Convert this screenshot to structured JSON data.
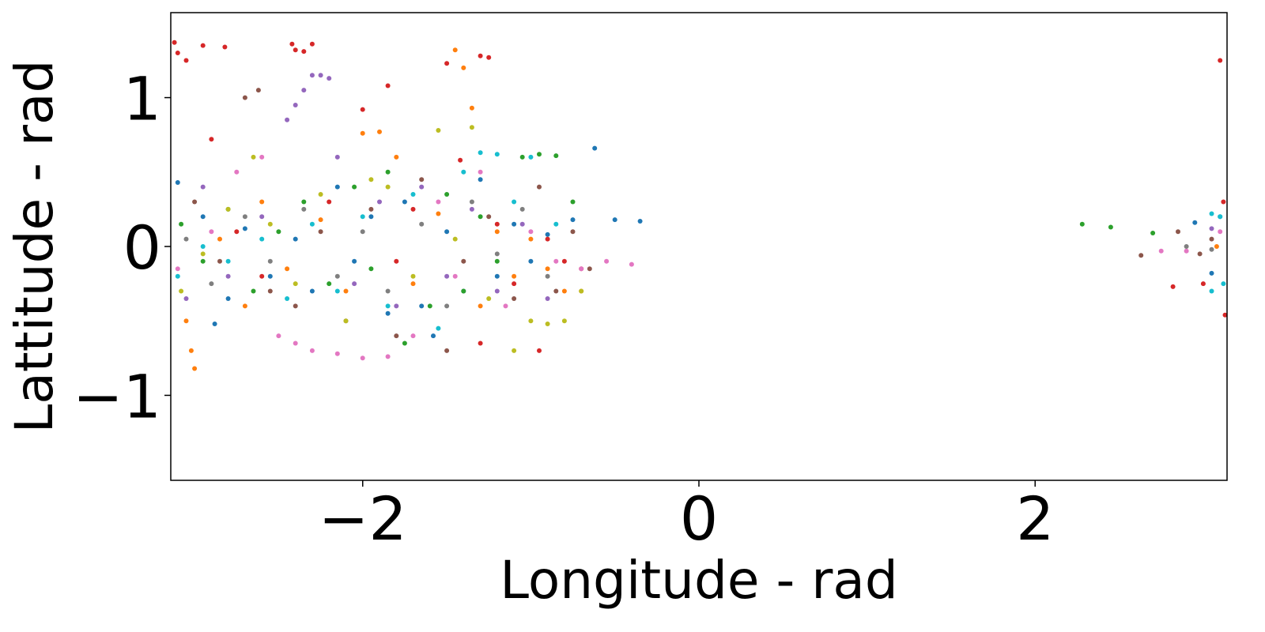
{
  "chart_data": {
    "type": "scatter",
    "title": "",
    "xlabel": "Longitude - rad",
    "ylabel": "Lattitude - rad",
    "xlim": [
      -3.1416,
      3.1416
    ],
    "ylim": [
      -1.5708,
      1.5708
    ],
    "xticks": [
      -2,
      0,
      2
    ],
    "xtick_labels": [
      "−2",
      "0",
      "2"
    ],
    "yticks": [
      -1,
      0,
      1
    ],
    "ytick_labels": [
      "−1",
      "0",
      "1"
    ],
    "grid": false,
    "legend": "none",
    "colors": [
      "#1f77b4",
      "#ff7f0e",
      "#2ca02c",
      "#d62728",
      "#9467bd",
      "#8c564b",
      "#e377c2",
      "#7f7f7f",
      "#bcbd22",
      "#17becf"
    ],
    "series": [
      {
        "color": "#1f77b4",
        "points": [
          [
            -3.1,
            0.43
          ],
          [
            -2.95,
            0.2
          ],
          [
            -2.88,
            -0.52
          ],
          [
            -2.8,
            -0.35
          ],
          [
            -2.7,
            0.12
          ],
          [
            -2.55,
            -0.2
          ],
          [
            -2.4,
            0.05
          ],
          [
            -2.3,
            -0.3
          ],
          [
            -2.15,
            0.4
          ],
          [
            -2.05,
            -0.1
          ],
          [
            -1.95,
            0.2
          ],
          [
            -1.85,
            -0.45
          ],
          [
            -1.75,
            0.3
          ],
          [
            -1.65,
            -0.4
          ],
          [
            -1.58,
            -0.6
          ],
          [
            -1.5,
            0.1
          ],
          [
            -1.4,
            -0.3
          ],
          [
            -1.3,
            0.45
          ],
          [
            -1.2,
            -0.2
          ],
          [
            -1.1,
            0.15
          ],
          [
            -1.0,
            -0.1
          ],
          [
            -0.9,
            0.08
          ],
          [
            -0.75,
            0.18
          ],
          [
            -0.62,
            0.66
          ],
          [
            -0.5,
            0.18
          ],
          [
            -0.35,
            0.17
          ],
          [
            2.95,
            0.16
          ],
          [
            3.05,
            -0.18
          ],
          [
            3.1,
            0.2
          ]
        ]
      },
      {
        "color": "#ff7f0e",
        "points": [
          [
            -3.05,
            -0.5
          ],
          [
            -3.02,
            -0.7
          ],
          [
            -3.0,
            -0.82
          ],
          [
            -2.85,
            0.05
          ],
          [
            -2.7,
            -0.4
          ],
          [
            -2.6,
            0.3
          ],
          [
            -2.45,
            -0.15
          ],
          [
            -2.25,
            0.18
          ],
          [
            -2.1,
            -0.3
          ],
          [
            -2.0,
            0.76
          ],
          [
            -1.9,
            0.77
          ],
          [
            -1.8,
            0.6
          ],
          [
            -1.7,
            -0.25
          ],
          [
            -1.55,
            0.22
          ],
          [
            -1.45,
            1.32
          ],
          [
            -1.4,
            1.2
          ],
          [
            -1.35,
            0.93
          ],
          [
            -1.3,
            -0.4
          ],
          [
            -1.2,
            0.1
          ],
          [
            -1.1,
            -0.2
          ],
          [
            -1.0,
            0.05
          ],
          [
            -0.9,
            -0.15
          ],
          [
            -0.8,
            -0.3
          ],
          [
            -0.7,
            -0.3
          ],
          [
            3.08,
            0.0
          ]
        ]
      },
      {
        "color": "#2ca02c",
        "points": [
          [
            -3.08,
            0.15
          ],
          [
            -2.95,
            -0.1
          ],
          [
            -2.8,
            0.25
          ],
          [
            -2.65,
            -0.3
          ],
          [
            -2.5,
            0.1
          ],
          [
            -2.35,
            0.3
          ],
          [
            -2.2,
            -0.25
          ],
          [
            -2.05,
            0.4
          ],
          [
            -1.95,
            -0.15
          ],
          [
            -1.85,
            0.5
          ],
          [
            -1.75,
            -0.65
          ],
          [
            -1.6,
            -0.4
          ],
          [
            -1.5,
            0.35
          ],
          [
            -1.4,
            -0.3
          ],
          [
            -1.3,
            0.2
          ],
          [
            -1.2,
            -0.1
          ],
          [
            -1.05,
            0.6
          ],
          [
            -0.95,
            0.62
          ],
          [
            -0.85,
            0.61
          ],
          [
            -0.75,
            0.3
          ],
          [
            2.28,
            0.15
          ],
          [
            2.45,
            0.13
          ],
          [
            2.7,
            0.09
          ]
        ]
      },
      {
        "color": "#d62728",
        "points": [
          [
            -3.12,
            1.37
          ],
          [
            -3.1,
            1.3
          ],
          [
            -3.05,
            1.25
          ],
          [
            -2.95,
            1.35
          ],
          [
            -2.82,
            1.34
          ],
          [
            -2.9,
            0.72
          ],
          [
            -2.75,
            0.1
          ],
          [
            -2.6,
            -0.2
          ],
          [
            -2.42,
            1.36
          ],
          [
            -2.4,
            1.32
          ],
          [
            -2.35,
            1.31
          ],
          [
            -2.3,
            1.36
          ],
          [
            -2.2,
            0.3
          ],
          [
            -2.0,
            0.92
          ],
          [
            -1.85,
            1.08
          ],
          [
            -1.8,
            -0.1
          ],
          [
            -1.7,
            0.25
          ],
          [
            -1.5,
            1.23
          ],
          [
            -1.42,
            0.58
          ],
          [
            -1.3,
            1.28
          ],
          [
            -1.25,
            1.27
          ],
          [
            -1.3,
            -0.65
          ],
          [
            -1.2,
            0.15
          ],
          [
            -1.1,
            -0.25
          ],
          [
            -0.95,
            -0.7
          ],
          [
            -0.9,
            0.05
          ],
          [
            -0.8,
            -0.1
          ],
          [
            -0.7,
            -0.15
          ],
          [
            2.82,
            -0.27
          ],
          [
            3.0,
            -0.25
          ],
          [
            3.1,
            1.25
          ],
          [
            3.12,
            0.3
          ],
          [
            3.13,
            -0.46
          ]
        ]
      },
      {
        "color": "#9467bd",
        "points": [
          [
            -3.05,
            -0.35
          ],
          [
            -2.95,
            0.4
          ],
          [
            -2.8,
            -0.2
          ],
          [
            -2.6,
            0.2
          ],
          [
            -2.45,
            0.85
          ],
          [
            -2.4,
            0.95
          ],
          [
            -2.35,
            1.05
          ],
          [
            -2.3,
            1.15
          ],
          [
            -2.25,
            1.15
          ],
          [
            -2.2,
            1.13
          ],
          [
            -2.15,
            0.6
          ],
          [
            -2.05,
            -0.25
          ],
          [
            -1.9,
            0.3
          ],
          [
            -1.8,
            -0.4
          ],
          [
            -1.65,
            0.4
          ],
          [
            -1.5,
            -0.2
          ],
          [
            -1.35,
            0.25
          ],
          [
            -1.2,
            -0.3
          ],
          [
            -1.05,
            0.15
          ],
          [
            -0.9,
            -0.35
          ],
          [
            3.05,
            0.12
          ]
        ]
      },
      {
        "color": "#8c564b",
        "points": [
          [
            -3.0,
            0.3
          ],
          [
            -2.85,
            -0.1
          ],
          [
            -2.7,
            1.0
          ],
          [
            -2.62,
            1.05
          ],
          [
            -2.55,
            -0.3
          ],
          [
            -2.4,
            -0.4
          ],
          [
            -2.25,
            0.1
          ],
          [
            -2.1,
            -0.5
          ],
          [
            -1.95,
            0.25
          ],
          [
            -1.8,
            -0.6
          ],
          [
            -1.65,
            0.45
          ],
          [
            -1.5,
            -0.7
          ],
          [
            -1.4,
            -0.1
          ],
          [
            -1.25,
            0.2
          ],
          [
            -1.1,
            -0.35
          ],
          [
            -0.95,
            0.4
          ],
          [
            -0.85,
            -0.3
          ],
          [
            -0.75,
            0.1
          ],
          [
            -0.65,
            -0.15
          ],
          [
            2.63,
            -0.06
          ],
          [
            2.85,
            0.1
          ],
          [
            2.98,
            -0.05
          ],
          [
            3.05,
            0.05
          ]
        ]
      },
      {
        "color": "#e377c2",
        "points": [
          [
            -3.1,
            -0.15
          ],
          [
            -2.9,
            0.1
          ],
          [
            -2.75,
            0.5
          ],
          [
            -2.6,
            0.6
          ],
          [
            -2.5,
            -0.6
          ],
          [
            -2.4,
            -0.65
          ],
          [
            -2.3,
            -0.7
          ],
          [
            -2.15,
            -0.72
          ],
          [
            -2.0,
            -0.75
          ],
          [
            -1.85,
            -0.74
          ],
          [
            -1.7,
            -0.6
          ],
          [
            -1.55,
            0.3
          ],
          [
            -1.45,
            -0.2
          ],
          [
            -1.3,
            0.5
          ],
          [
            -1.15,
            -0.4
          ],
          [
            -1.0,
            0.1
          ],
          [
            -0.85,
            -0.1
          ],
          [
            -0.7,
            -0.15
          ],
          [
            -0.55,
            -0.1
          ],
          [
            -0.4,
            -0.12
          ],
          [
            2.75,
            -0.03
          ],
          [
            2.9,
            -0.03
          ],
          [
            3.1,
            0.1
          ]
        ]
      },
      {
        "color": "#7f7f7f",
        "points": [
          [
            -3.05,
            0.05
          ],
          [
            -2.9,
            -0.25
          ],
          [
            -2.7,
            0.2
          ],
          [
            -2.55,
            -0.1
          ],
          [
            -2.35,
            0.25
          ],
          [
            -2.15,
            -0.2
          ],
          [
            -2.0,
            0.1
          ],
          [
            -1.85,
            -0.3
          ],
          [
            -1.65,
            0.15
          ],
          [
            -1.5,
            -0.4
          ],
          [
            -1.35,
            0.3
          ],
          [
            -1.2,
            -0.05
          ],
          [
            -1.05,
            0.25
          ],
          [
            -0.9,
            -0.2
          ],
          [
            2.9,
            0.0
          ],
          [
            3.05,
            -0.02
          ]
        ]
      },
      {
        "color": "#bcbd22",
        "points": [
          [
            -3.08,
            -0.3
          ],
          [
            -2.95,
            -0.05
          ],
          [
            -2.8,
            0.25
          ],
          [
            -2.65,
            0.6
          ],
          [
            -2.55,
            0.15
          ],
          [
            -2.4,
            -0.25
          ],
          [
            -2.25,
            0.35
          ],
          [
            -2.1,
            -0.5
          ],
          [
            -1.95,
            0.45
          ],
          [
            -1.85,
            0.4
          ],
          [
            -1.7,
            -0.2
          ],
          [
            -1.55,
            0.78
          ],
          [
            -1.45,
            0.05
          ],
          [
            -1.35,
            0.8
          ],
          [
            -1.25,
            -0.35
          ],
          [
            -1.1,
            -0.7
          ],
          [
            -1.0,
            -0.5
          ],
          [
            -0.9,
            -0.52
          ],
          [
            -0.8,
            -0.5
          ],
          [
            -0.7,
            -0.3
          ]
        ]
      },
      {
        "color": "#17becf",
        "points": [
          [
            -3.1,
            -0.2
          ],
          [
            -2.95,
            0.0
          ],
          [
            -2.8,
            -0.1
          ],
          [
            -2.6,
            0.05
          ],
          [
            -2.45,
            -0.35
          ],
          [
            -2.3,
            0.15
          ],
          [
            -2.15,
            -0.3
          ],
          [
            -2.0,
            0.2
          ],
          [
            -1.85,
            -0.4
          ],
          [
            -1.7,
            0.35
          ],
          [
            -1.55,
            -0.55
          ],
          [
            -1.4,
            0.5
          ],
          [
            -1.3,
            0.63
          ],
          [
            -1.2,
            0.62
          ],
          [
            -1.1,
            0.3
          ],
          [
            -1.0,
            0.6
          ],
          [
            -0.85,
            0.15
          ],
          [
            3.05,
            0.22
          ],
          [
            3.1,
            0.2
          ],
          [
            3.12,
            -0.25
          ],
          [
            3.05,
            -0.3
          ]
        ]
      }
    ]
  }
}
